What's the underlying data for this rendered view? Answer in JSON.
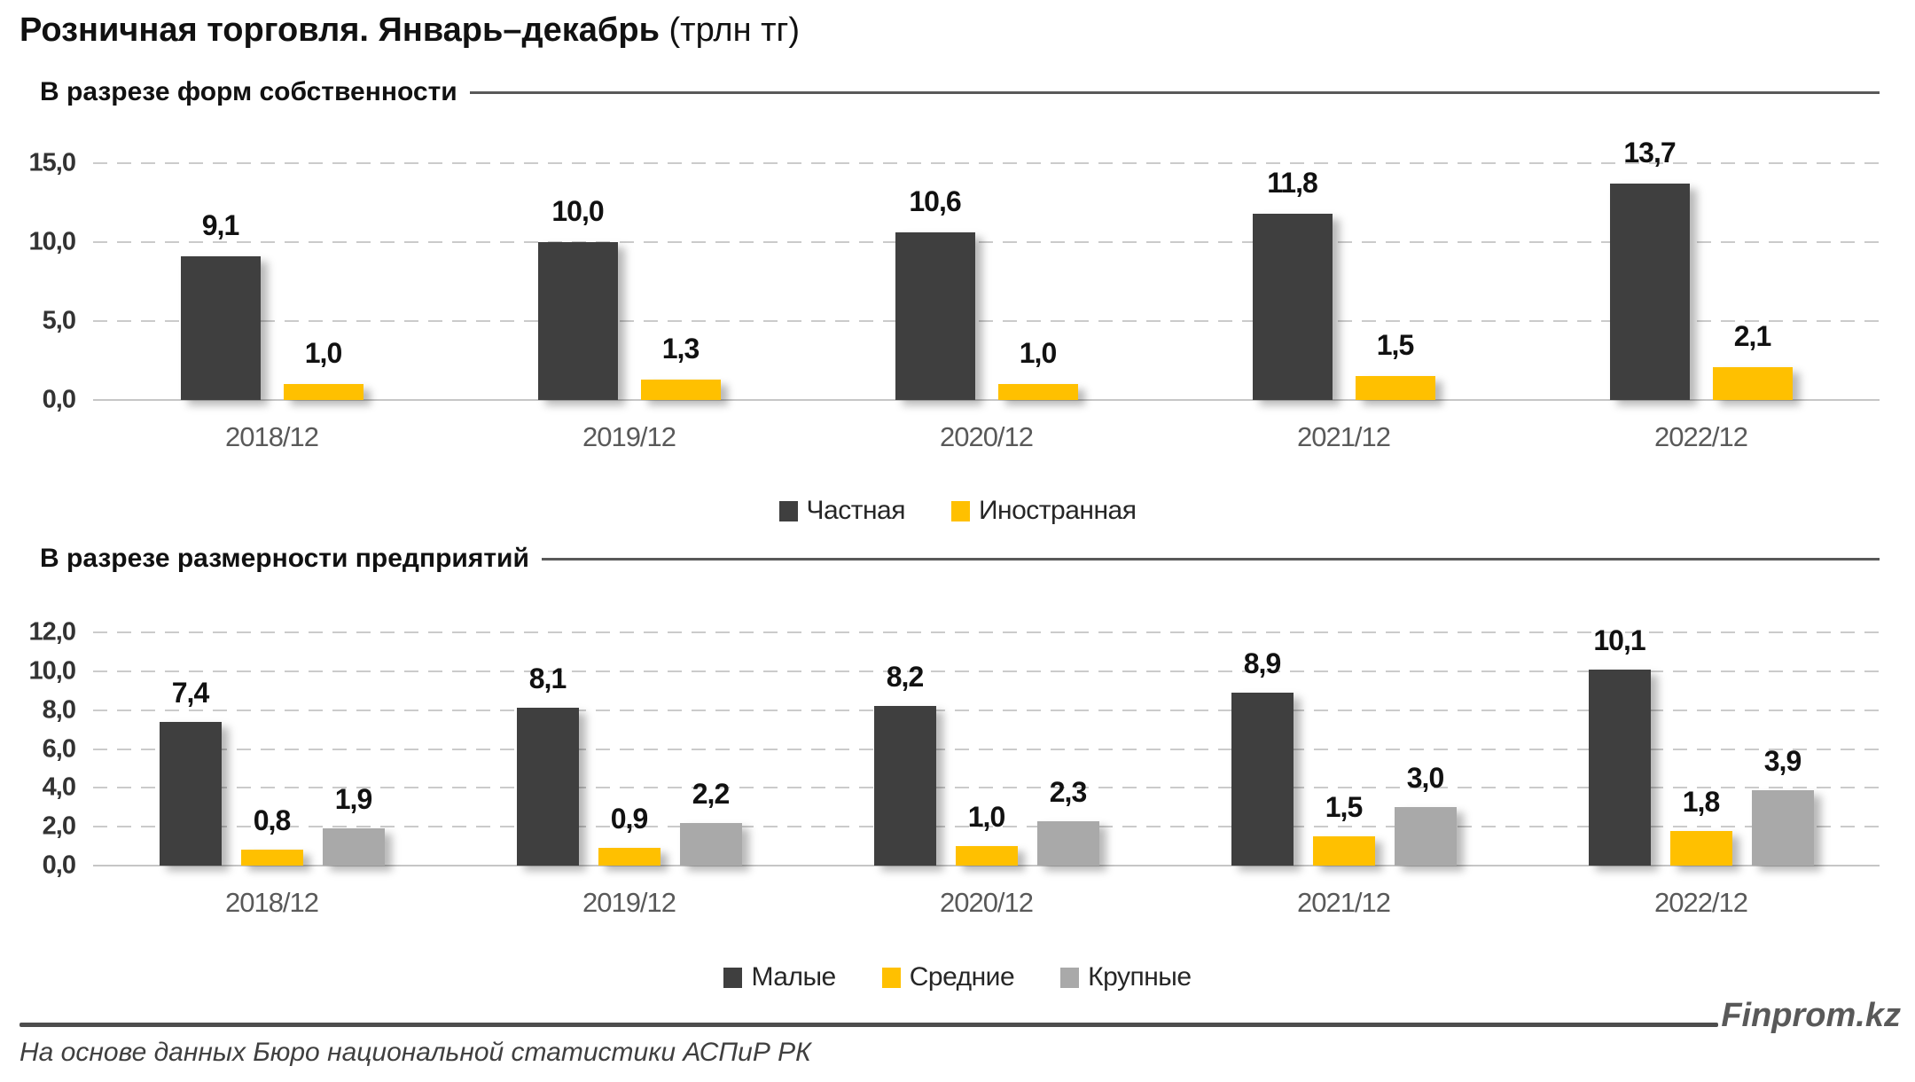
{
  "title": {
    "main": "Розничная торговля. Январь–декабрь",
    "unit": "(трлн тг)"
  },
  "footer": {
    "source": "На основе данных Бюро национальной статистики АСПиР РК",
    "brand": "Finprom.kz"
  },
  "colors": {
    "dark": "#3f3f3f",
    "gold": "#ffc000",
    "gray": "#a9a9a9",
    "grid": "#cbcbcb",
    "axis_text": "#595959",
    "rule": "#595959"
  },
  "chart_data": [
    {
      "type": "bar",
      "section_title": "В разрезе форм собственности",
      "categories": [
        "2018/12",
        "2019/12",
        "2020/12",
        "2021/12",
        "2022/12"
      ],
      "series": [
        {
          "name": "Частная",
          "color": "#3f3f3f",
          "values": [
            9.1,
            10.0,
            10.6,
            11.8,
            13.7
          ],
          "labels": [
            "9,1",
            "10,0",
            "10,6",
            "11,8",
            "13,7"
          ]
        },
        {
          "name": "Иностранная",
          "color": "#ffc000",
          "values": [
            1.0,
            1.3,
            1.0,
            1.5,
            2.1
          ],
          "labels": [
            "1,0",
            "1,3",
            "1,0",
            "1,5",
            "2,1"
          ]
        }
      ],
      "xlabel": "",
      "ylabel": "",
      "ylim": [
        0,
        15
      ],
      "yticks": [
        {
          "v": 0,
          "label": "0,0"
        },
        {
          "v": 5,
          "label": "5,0"
        },
        {
          "v": 10,
          "label": "10,0"
        },
        {
          "v": 15,
          "label": "15,0"
        }
      ],
      "grid": "dashed-horizontal",
      "legend_position": "bottom-center"
    },
    {
      "type": "bar",
      "section_title": "В разрезе размерности предприятий",
      "categories": [
        "2018/12",
        "2019/12",
        "2020/12",
        "2021/12",
        "2022/12"
      ],
      "series": [
        {
          "name": "Малые",
          "color": "#3f3f3f",
          "values": [
            7.4,
            8.1,
            8.2,
            8.9,
            10.1
          ],
          "labels": [
            "7,4",
            "8,1",
            "8,2",
            "8,9",
            "10,1"
          ]
        },
        {
          "name": "Средние",
          "color": "#ffc000",
          "values": [
            0.8,
            0.9,
            1.0,
            1.5,
            1.8
          ],
          "labels": [
            "0,8",
            "0,9",
            "1,0",
            "1,5",
            "1,8"
          ]
        },
        {
          "name": "Крупные",
          "color": "#a9a9a9",
          "values": [
            1.9,
            2.2,
            2.3,
            3.0,
            3.9
          ],
          "labels": [
            "1,9",
            "2,2",
            "2,3",
            "3,0",
            "3,9"
          ]
        }
      ],
      "xlabel": "",
      "ylabel": "",
      "ylim": [
        0,
        12
      ],
      "yticks": [
        {
          "v": 0,
          "label": "0,0"
        },
        {
          "v": 2,
          "label": "2,0"
        },
        {
          "v": 4,
          "label": "4,0"
        },
        {
          "v": 6,
          "label": "6,0"
        },
        {
          "v": 8,
          "label": "8,0"
        },
        {
          "v": 10,
          "label": "10,0"
        },
        {
          "v": 12,
          "label": "12,0"
        }
      ],
      "grid": "dashed-horizontal",
      "legend_position": "bottom-center"
    }
  ]
}
